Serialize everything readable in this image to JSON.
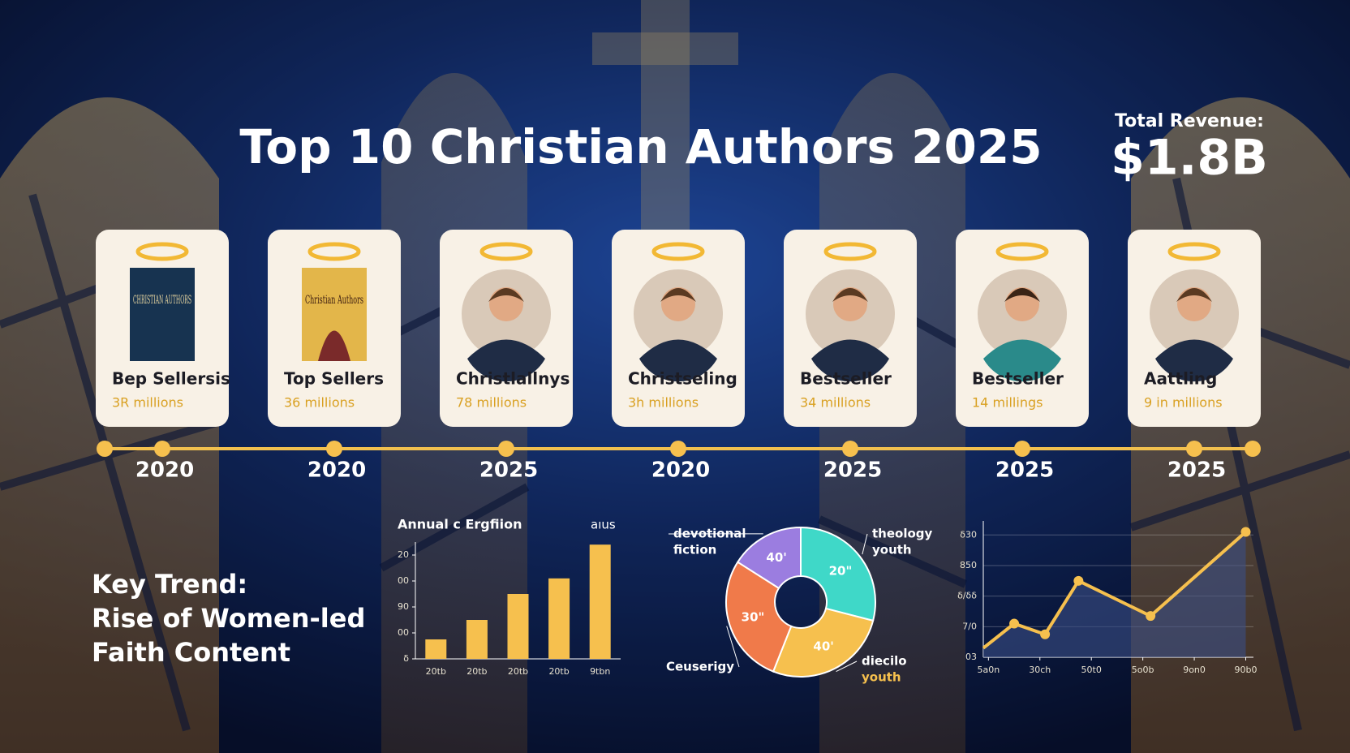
{
  "header": {
    "title": "Top 10 Christian Authors 2025",
    "revenue_label": "Total Revenue:",
    "revenue_value": "$1.8B"
  },
  "cards": [
    {
      "name": "Bep Sellersis",
      "sales": "3R millions",
      "book_title": "CHRISTIAN AUTHORS"
    },
    {
      "name": "Top Sellers",
      "sales": "36 millions",
      "book_title": "Christian Authors"
    },
    {
      "name": "Christlallnys",
      "sales": "78 millions"
    },
    {
      "name": "Christseling",
      "sales": "3h millions"
    },
    {
      "name": "Bestseller",
      "sales": "34 millions"
    },
    {
      "name": "Bestseller",
      "sales": "14 millings"
    },
    {
      "name": "Aattling",
      "sales": "9 in millions"
    }
  ],
  "timeline": {
    "years": [
      "2020",
      "2020",
      "2025",
      "2020",
      "2025",
      "2025",
      "2025"
    ]
  },
  "key_trend": {
    "lines": [
      "Key Trend:",
      "Rise of Women-led",
      "Faith Content"
    ]
  },
  "chart_data": [
    {
      "type": "bar",
      "title": "Annual c Ergfiion",
      "annotation": "aıus",
      "color": "#f6c04e",
      "categories": [
        "20tb",
        "20tb",
        "20tb",
        "20tb",
        "9tbn"
      ],
      "values": [
        0.75,
        1.5,
        2.5,
        3.1,
        4.4
      ],
      "ylim": [
        0,
        4.5
      ],
      "yticks": [
        {
          "value": 0,
          "label": "δ"
        },
        {
          "value": 1,
          "label": "00"
        },
        {
          "value": 2,
          "label": "90"
        },
        {
          "value": 3,
          "label": "00"
        },
        {
          "value": 4,
          "label": "20"
        }
      ]
    },
    {
      "type": "pie",
      "donut": true,
      "categories": [
        "theology youth",
        "diecilo youth",
        "Ceuserigy",
        "devotional fiction"
      ],
      "outer_labels": [
        [
          "theology",
          "youth"
        ],
        [
          "diecilo",
          "youth"
        ],
        [
          "Ceuserigy"
        ],
        [
          "devotional",
          "fiction"
        ]
      ],
      "slice_texts": [
        "20\"",
        "40'",
        "30\"",
        "40'"
      ],
      "values": [
        29,
        27,
        28,
        16
      ],
      "colors": [
        "#3fd8c8",
        "#f6c04e",
        "#f07a4a",
        "#9b7de0"
      ]
    },
    {
      "type": "line",
      "color": "#f6c04e",
      "x": [
        -0.1,
        0.5,
        1.1,
        1.75,
        3.15,
        5
      ],
      "values": [
        0.3,
        1.1,
        0.75,
        2.5,
        1.35,
        4.1
      ],
      "xlim": [
        -0.1,
        5.15
      ],
      "ylim": [
        0,
        4.3
      ],
      "xticks": [
        {
          "value": 0,
          "label": "5a0n"
        },
        {
          "value": 1,
          "label": "30ch"
        },
        {
          "value": 2,
          "label": "50t0"
        },
        {
          "value": 3,
          "label": "5o0b"
        },
        {
          "value": 4,
          "label": "9on0"
        },
        {
          "value": 5,
          "label": "90b0"
        }
      ],
      "yticks": [
        {
          "value": 0,
          "label": "03"
        },
        {
          "value": 1,
          "label": "7/0"
        },
        {
          "value": 2,
          "label": "δ/δδ"
        },
        {
          "value": 3,
          "label": "850"
        },
        {
          "value": 4,
          "label": "δ30"
        }
      ],
      "grid": true
    }
  ]
}
